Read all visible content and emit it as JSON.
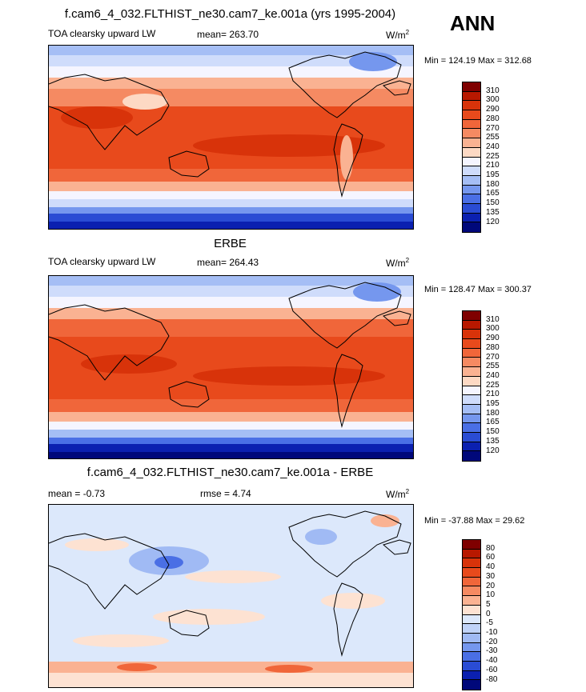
{
  "season": "ANN",
  "panels": [
    {
      "title": "f.cam6_4_032.FLTHIST_ne30.cam7_ke.001a (yrs 1995-2004)",
      "variable": "TOA clearsky upward LW",
      "stat_text": "mean= 263.70",
      "units_base": "W/m",
      "units_exp": "2",
      "minmax": "Min = 124.19 Max = 312.68"
    },
    {
      "title": "ERBE",
      "variable": "TOA clearsky upward LW",
      "stat_text": "mean= 264.43",
      "units_base": "W/m",
      "units_exp": "2",
      "minmax": "Min = 128.47 Max = 300.37"
    },
    {
      "title": "f.cam6_4_032.FLTHIST_ne30.cam7_ke.001a - ERBE",
      "variable": "mean =  -0.73",
      "stat_text": "rmse =   4.74",
      "units_base": "W/m",
      "units_exp": "2",
      "minmax": "Min = -37.88 Max =  29.62"
    }
  ],
  "colorbars": [
    {
      "labels": [
        "310",
        "300",
        "290",
        "280",
        "270",
        "255",
        "240",
        "225",
        "210",
        "195",
        "180",
        "165",
        "150",
        "135",
        "120"
      ],
      "colors": [
        "#7f0000",
        "#b81800",
        "#d8330a",
        "#e84a1c",
        "#f0663a",
        "#f58a62",
        "#fab292",
        "#fdd9c4",
        "#f5f5ff",
        "#cfdcfb",
        "#a5bef5",
        "#7597ee",
        "#4a6fe5",
        "#2a4cd4",
        "#0b20b0",
        "#00087a"
      ]
    },
    {
      "labels": [
        "310",
        "300",
        "290",
        "280",
        "270",
        "255",
        "240",
        "225",
        "210",
        "195",
        "180",
        "165",
        "150",
        "135",
        "120"
      ],
      "colors": [
        "#7f0000",
        "#b81800",
        "#d8330a",
        "#e84a1c",
        "#f0663a",
        "#f58a62",
        "#fab292",
        "#fdd9c4",
        "#f5f5ff",
        "#cfdcfb",
        "#a5bef5",
        "#7597ee",
        "#4a6fe5",
        "#2a4cd4",
        "#0b20b0",
        "#00087a"
      ]
    },
    {
      "labels": [
        "80",
        "60",
        "40",
        "30",
        "20",
        "10",
        "5",
        "0",
        "-5",
        "-10",
        "-20",
        "-30",
        "-40",
        "-60",
        "-80"
      ],
      "colors": [
        "#7f0000",
        "#b81800",
        "#d8330a",
        "#e84a1c",
        "#f0663a",
        "#f58a62",
        "#fab292",
        "#fde2d2",
        "#dce8fb",
        "#c0d3f8",
        "#a0baf4",
        "#7597ee",
        "#4a6fe5",
        "#2a4cd4",
        "#0b20b0",
        "#00087a"
      ]
    }
  ]
}
